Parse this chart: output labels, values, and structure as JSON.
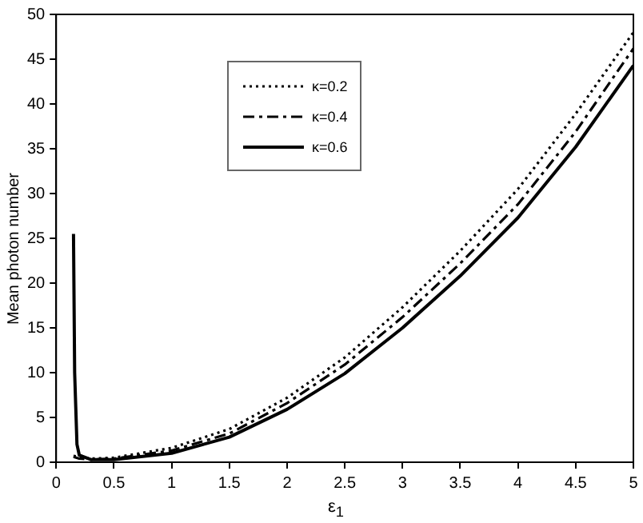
{
  "chart_data": {
    "type": "line",
    "xlabel": "ε$_{1}$",
    "ylabel": "Mean photon number",
    "xlim": [
      0,
      5
    ],
    "xticks": [
      0,
      0.5,
      1,
      1.5,
      2,
      2.5,
      3,
      3.5,
      4,
      4.5,
      5
    ],
    "ylim": [
      0,
      50
    ],
    "yticks": [
      0,
      5,
      10,
      15,
      20,
      25,
      30,
      35,
      40,
      45,
      50
    ],
    "grid": false,
    "legend": "top",
    "marker": "none",
    "series": [
      {
        "name": "κ=0.2",
        "color": "#000000",
        "line_style": "dotted",
        "x": [
          0.15,
          0.3,
          0.5,
          1,
          1.5,
          2,
          2.5,
          3,
          3.5,
          4,
          4.5,
          5
        ],
        "values": [
          0.7,
          0.4,
          0.5,
          1.6,
          3.7,
          7.2,
          11.7,
          17.3,
          23.6,
          30.5,
          38.9,
          48.0
        ]
      },
      {
        "name": "κ=0.4",
        "color": "#000000",
        "line_style": "dashed",
        "x": [
          0.15,
          0.2,
          0.3,
          0.5,
          1,
          1.5,
          2,
          2.5,
          3,
          3.5,
          4,
          4.5,
          5
        ],
        "values": [
          0.6,
          0.4,
          0.3,
          0.4,
          1.3,
          3.2,
          6.6,
          10.9,
          16.2,
          22.2,
          28.8,
          36.9,
          46.2
        ]
      },
      {
        "name": "κ=0.6",
        "color": "#000000",
        "line_style": "solid",
        "x": [
          0.15,
          0.16,
          0.18,
          0.2,
          0.3,
          0.5,
          1,
          1.5,
          2,
          2.5,
          3,
          3.5,
          4,
          4.5,
          5
        ],
        "values": [
          25.5,
          10,
          2,
          0.8,
          0.3,
          0.3,
          1.0,
          2.8,
          5.9,
          9.9,
          15,
          20.8,
          27.3,
          35.2,
          44.3
        ]
      }
    ]
  }
}
